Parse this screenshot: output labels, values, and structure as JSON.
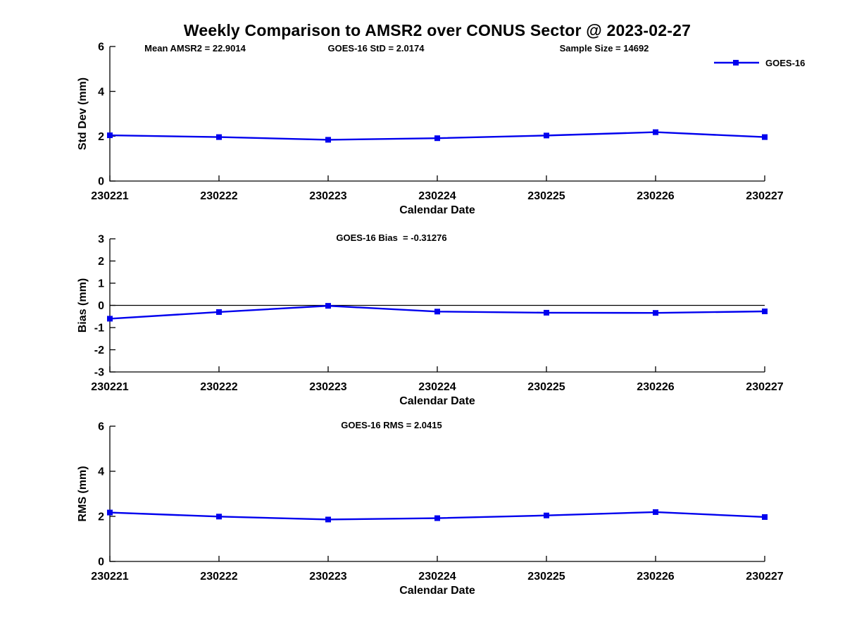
{
  "figure": {
    "title": "Weekly Comparison to AMSR2 over CONUS Sector @ 2023-02-27",
    "legend_label": "GOES-16",
    "series_color": "#0000ee",
    "axis_color": "#000000",
    "background_color": "#ffffff",
    "legend_position": "top-right"
  },
  "chart_data": [
    {
      "type": "line",
      "title": "",
      "annotations": [
        "Mean AMSR2 = 22.9014",
        "GOES-16 StD = 2.0174",
        "Sample Size = 14692"
      ],
      "categories": [
        "230221",
        "230222",
        "230223",
        "230224",
        "230225",
        "230226",
        "230227"
      ],
      "series": [
        {
          "name": "GOES-16",
          "marker": "square",
          "values": [
            2.04,
            1.96,
            1.84,
            1.91,
            2.03,
            2.18,
            1.96
          ]
        }
      ],
      "xlabel": "Calendar Date",
      "ylabel": "Std Dev (mm)",
      "ylim": [
        0,
        6
      ],
      "yticks": [
        0,
        2,
        4,
        6
      ],
      "grid": false,
      "zero_line": false
    },
    {
      "type": "line",
      "title": "GOES-16 Bias  = -0.31276",
      "annotations": [],
      "categories": [
        "230221",
        "230222",
        "230223",
        "230224",
        "230225",
        "230226",
        "230227"
      ],
      "series": [
        {
          "name": "GOES-16",
          "marker": "square",
          "values": [
            -0.6,
            -0.3,
            -0.02,
            -0.28,
            -0.33,
            -0.34,
            -0.27
          ]
        }
      ],
      "xlabel": "Calendar Date",
      "ylabel": "Bias (mm)",
      "ylim": [
        -3,
        3
      ],
      "yticks": [
        3,
        2,
        1,
        0,
        -1,
        -2,
        -3
      ],
      "grid": false,
      "zero_line": true
    },
    {
      "type": "line",
      "title": "GOES-16 RMS = 2.0415",
      "annotations": [],
      "categories": [
        "230221",
        "230222",
        "230223",
        "230224",
        "230225",
        "230226",
        "230227"
      ],
      "series": [
        {
          "name": "GOES-16",
          "marker": "square",
          "values": [
            2.17,
            1.99,
            1.86,
            1.92,
            2.04,
            2.19,
            1.97
          ]
        }
      ],
      "xlabel": "Calendar Date",
      "ylabel": "RMS (mm)",
      "ylim": [
        0,
        6
      ],
      "yticks": [
        0,
        2,
        4,
        6
      ],
      "grid": false,
      "zero_line": false
    }
  ]
}
